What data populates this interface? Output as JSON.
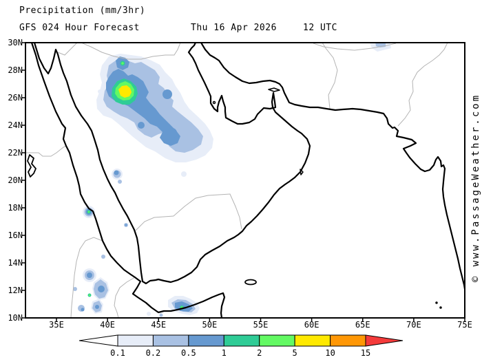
{
  "header": {
    "product": "Precipitation (mm/3hr)",
    "model_run": "GFS 024 Hour Forecast",
    "valid_date": "Thu 16 Apr 2026",
    "valid_time": "12 UTC"
  },
  "watermark": {
    "text": "© www.PassageWeather.com"
  },
  "map": {
    "lat_labels": [
      "30N",
      "28N",
      "26N",
      "24N",
      "22N",
      "20N",
      "18N",
      "16N",
      "14N",
      "12N",
      "10N"
    ],
    "lon_labels": [
      "35E",
      "40E",
      "45E",
      "50E",
      "55E",
      "60E",
      "65E",
      "70E",
      "75E"
    ]
  },
  "chart_data": {
    "type": "heatmap",
    "title": "Precipitation (mm/3hr)",
    "model": "GFS",
    "forecast_hour": 24,
    "valid": "Thu 16 Apr 2026 12 UTC",
    "region": {
      "lat_range": [
        "10N",
        "30N"
      ],
      "lon_range": [
        "32E",
        "75E"
      ]
    },
    "legend": {
      "unit": "mm/3hr",
      "labels": [
        "0.1",
        "0.2",
        "0.5",
        "1",
        "2",
        "5",
        "10",
        "15"
      ],
      "thresholds": [
        0.1,
        0.2,
        0.5,
        1,
        2,
        5,
        10,
        15
      ],
      "colors": [
        "#e7edf8",
        "#a9c1e3",
        "#6699d0",
        "#2fcc96",
        "#63f963",
        "#ffe900",
        "#ff9705"
      ],
      "below_color": "#ffffff",
      "above_color": "#f43b3b"
    },
    "features": [
      {
        "name": "Storm cluster over NW Saudi Arabia",
        "approx_center": "27N 41E",
        "peak_value": "5-10 mm/3hr"
      },
      {
        "name": "Shower on Sudan Red Sea coast",
        "approx_center": "17.5N 41E",
        "peak_value": "2-5 mm/3hr"
      },
      {
        "name": "Scattered showers Ethiopian highlands",
        "approx_center": "11-14N 38-40E",
        "peak_value": "2-5 mm/3hr"
      },
      {
        "name": "Shower on Gulf of Aden coast",
        "approx_center": "11N 47E",
        "peak_value": "2-5 mm/3hr"
      },
      {
        "name": "Light rain SE Iran border",
        "approx_center": "30N 57E",
        "peak_value": "0.2-0.5 mm/3hr"
      }
    ]
  }
}
